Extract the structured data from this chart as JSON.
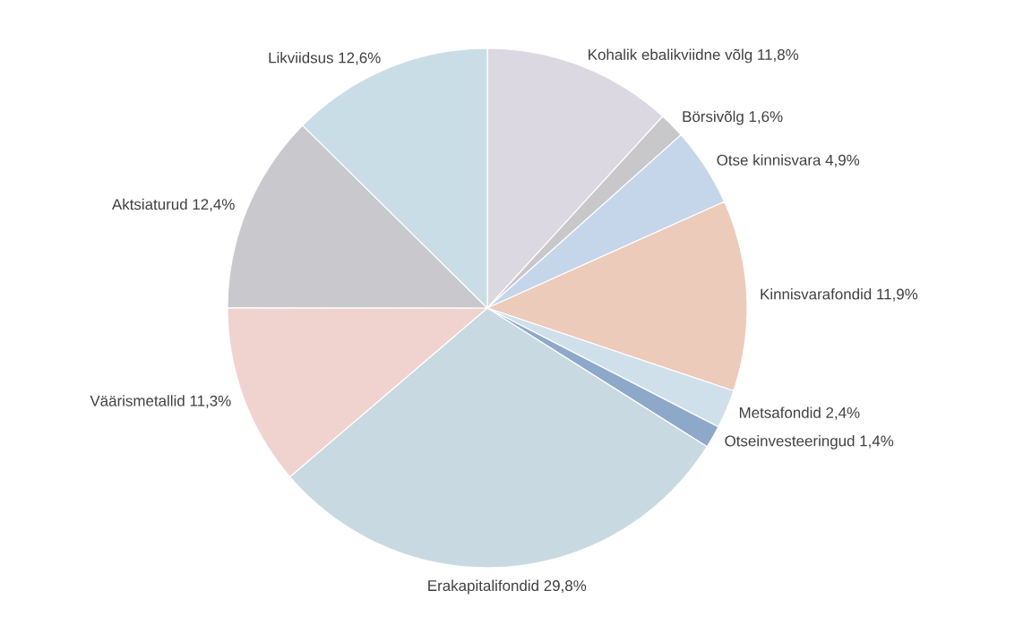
{
  "chart_data": {
    "type": "pie",
    "categories": [
      "Kohalik ebalikviidne võlg",
      "Börsivõlg",
      "Otse kinnisvara",
      "Kinnisvarafondid",
      "Metsafondid",
      "Otseinvesteeringud",
      "Erakapitalifondid",
      "Väärismetallid",
      "Aktsiaturud",
      "Likviidsus"
    ],
    "values": [
      11.8,
      1.6,
      4.9,
      11.9,
      2.4,
      1.4,
      29.8,
      11.3,
      12.4,
      12.6
    ],
    "value_labels": [
      "11,8%",
      "1,6%",
      "4,9%",
      "11,9%",
      "2,4%",
      "1,4%",
      "29,8%",
      "11,3%",
      "12,4%",
      "12,6%"
    ],
    "colors": [
      "#dcd8e2",
      "#c8c8ca",
      "#c6d6ea",
      "#eccbbb",
      "#cfe0ea",
      "#8ea8ca",
      "#c9d9e2",
      "#f0d2ce",
      "#c9c9cd",
      "#c9dde6"
    ]
  }
}
